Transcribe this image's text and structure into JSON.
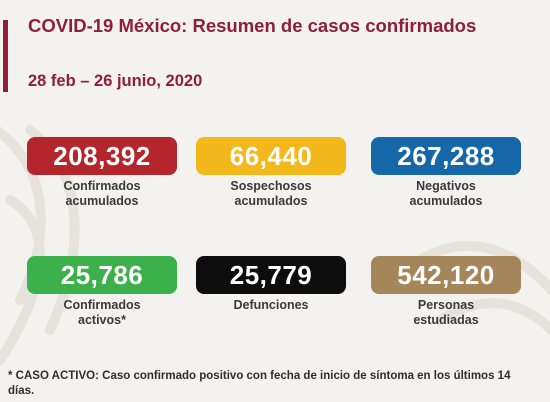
{
  "header": {
    "title": "COVID-19 México: Resumen de casos confirmados",
    "date_range": "28 feb – 26 junio, 2020"
  },
  "colors": {
    "brand": "#8e1f3a",
    "confirmados": "#b4262b",
    "sospechosos": "#f2b81c",
    "negativos": "#1667a8",
    "activos": "#3cb04a",
    "defunciones": "#0d0d0d",
    "estudiadas": "#a4865a"
  },
  "stats": {
    "confirmados": {
      "value": "208,392",
      "line1": "Confirmados",
      "line2": "acumulados"
    },
    "sospechosos": {
      "value": "66,440",
      "line1": "Sospechosos",
      "line2": "acumulados"
    },
    "negativos": {
      "value": "267,288",
      "line1": "Negativos",
      "line2": "acumulados"
    },
    "activos": {
      "value": "25,786",
      "line1": "Confirmados",
      "line2": "activos*"
    },
    "defunciones": {
      "value": "25,779",
      "line1": "Defunciones",
      "line2": ""
    },
    "estudiadas": {
      "value": "542,120",
      "line1": "Personas",
      "line2": "estudiadas"
    }
  },
  "footnote": "* CASO ACTIVO: Caso confirmado positivo con fecha de inicio de síntoma en los últimos 14 días."
}
